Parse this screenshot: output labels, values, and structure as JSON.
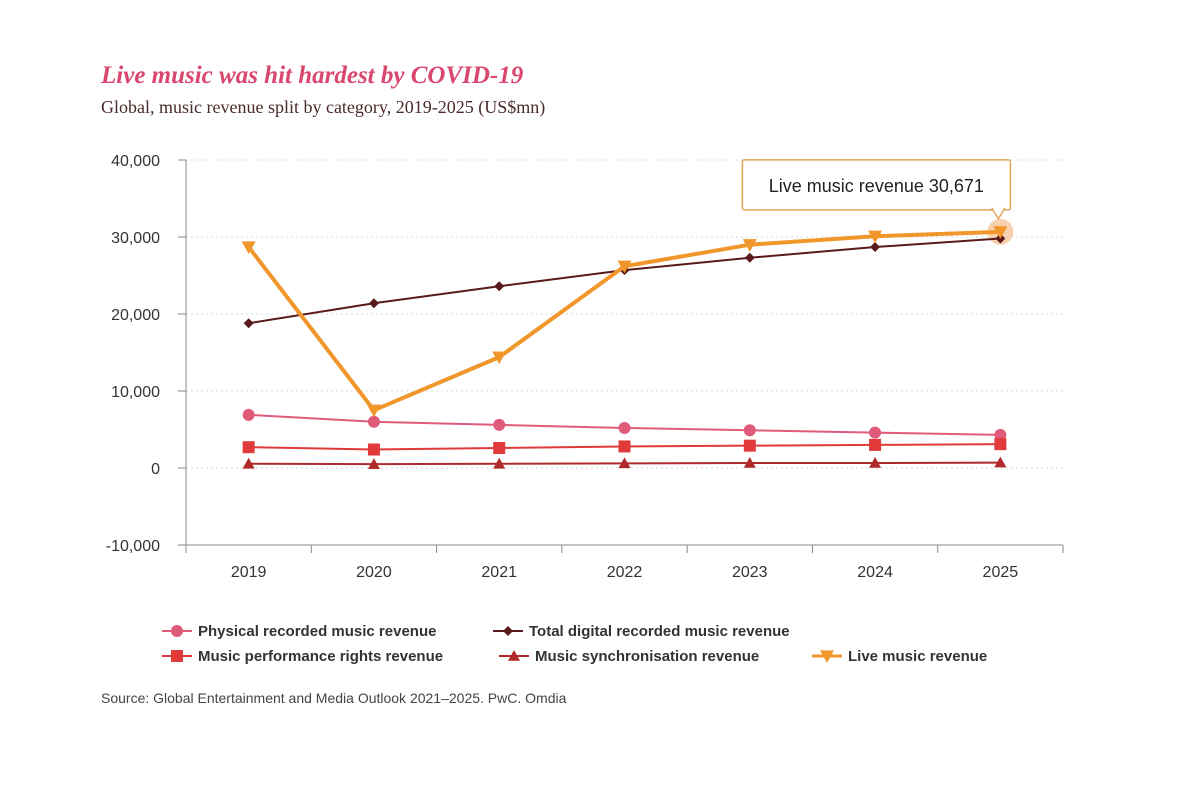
{
  "header": {
    "title": "Live music was hit hardest by COVID-19",
    "subtitle": "Global, music revenue split by category, 2019-2025 (US$mn)"
  },
  "source": "Source: Global Entertainment and Media Outlook 2021–2025. PwC. Omdia",
  "colors": {
    "axis": "#888888",
    "grid": "#d8d8d8",
    "tooltip_border": "#e2a458"
  },
  "chart_data": {
    "type": "line",
    "x": [
      "2019",
      "2020",
      "2021",
      "2022",
      "2023",
      "2024",
      "2025"
    ],
    "ylim": [
      -10000,
      40000
    ],
    "yticks": [
      40000,
      30000,
      20000,
      10000,
      0,
      -10000
    ],
    "ytick_labels": [
      "40,000",
      "30,000",
      "20,000",
      "10,000",
      "0",
      "-10,000"
    ],
    "grid": true,
    "legend_position": "bottom",
    "series": [
      {
        "name": "Physical recorded music revenue",
        "marker": "circle",
        "color": "#e05a7a",
        "values": [
          6900,
          6000,
          5600,
          5200,
          4900,
          4600,
          4300
        ]
      },
      {
        "name": "Total digital recorded music revenue",
        "marker": "diamond",
        "color": "#5a1a1a",
        "values": [
          18800,
          21400,
          23600,
          25700,
          27300,
          28700,
          29800
        ]
      },
      {
        "name": "Music performance rights revenue",
        "marker": "square",
        "color": "#e03a3a",
        "values": [
          2700,
          2400,
          2600,
          2800,
          2900,
          3000,
          3100
        ]
      },
      {
        "name": "Music synchronisation revenue",
        "marker": "triangle-up",
        "color": "#b02a2a",
        "values": [
          550,
          500,
          550,
          600,
          650,
          650,
          700
        ]
      },
      {
        "name": "Live music revenue",
        "marker": "triangle-down",
        "color": "#f0962a",
        "values": [
          28700,
          7500,
          14400,
          26200,
          29000,
          30100,
          30671
        ]
      }
    ],
    "annotation": {
      "series": "Live music revenue",
      "x": "2025",
      "text": "Live music revenue 30,671"
    }
  }
}
